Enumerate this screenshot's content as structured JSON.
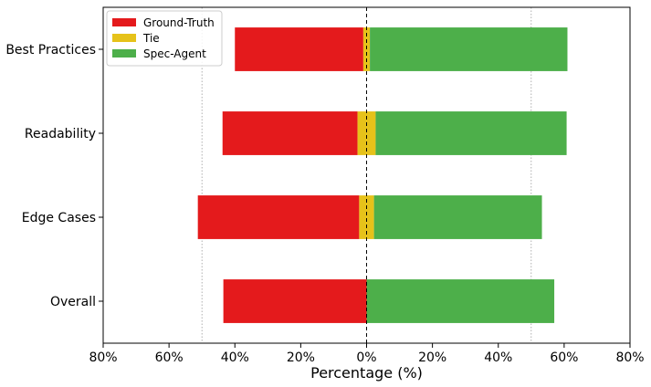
{
  "chart_data": {
    "type": "bar",
    "orientation": "horizontal-diverging",
    "categories": [
      "Best Practices",
      "Readability",
      "Edge Cases",
      "Overall"
    ],
    "series": [
      {
        "name": "Ground-Truth",
        "color": "#e41a1c",
        "values": [
          39,
          41,
          49,
          43.5
        ]
      },
      {
        "name": "Tie",
        "color": "#e6c21a",
        "values": [
          2,
          5.5,
          4.5,
          0
        ]
      },
      {
        "name": "Spec-Agent",
        "color": "#4daf4a",
        "values": [
          60,
          58,
          51,
          57
        ]
      }
    ],
    "xlabel": "Percentage (%)",
    "ylabel": "",
    "xlim": [
      -80,
      80
    ],
    "xticks": [
      "80%",
      "60%",
      "40%",
      "20%",
      "0%",
      "20%",
      "40%",
      "60%",
      "80%"
    ],
    "reference_lines": [
      -50,
      50
    ],
    "center_line": 0,
    "legend_position": "top-left"
  }
}
